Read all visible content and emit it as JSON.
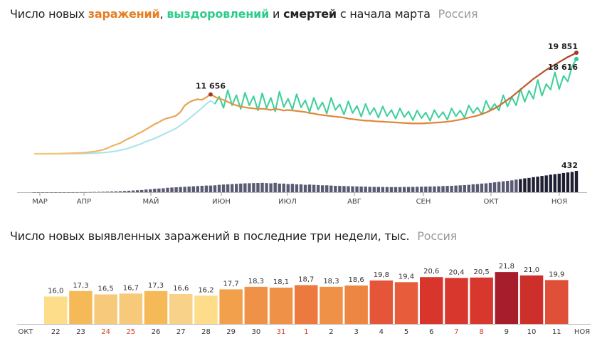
{
  "colors": {
    "cases": "#e2893b",
    "recoveries": "#2ecc8b",
    "recoveries_light": "#a6e3ea",
    "deaths": "#3d3d5c",
    "deaths_last": "#1f1f33",
    "peak_cases": "#a33a2a",
    "weekend": "#d63a2a"
  },
  "header1": {
    "prefix": "Число новых",
    "cases": "заражений",
    "sep": ",",
    "recoveries": "выздоровлений",
    "and": "и",
    "deaths": "смертей",
    "suffix": "с начала марта",
    "region": "Россия"
  },
  "header2": {
    "text": "Число новых выявленных заражений в последние три недели, тыс.",
    "region": "Россия"
  },
  "chart_data": [
    {
      "type": "line",
      "series": [
        {
          "name": "заражений",
          "values": [
            0,
            0,
            0,
            5,
            10,
            20,
            40,
            60,
            90,
            120,
            150,
            200,
            250,
            350,
            450,
            600,
            800,
            1100,
            1500,
            1800,
            2100,
            2600,
            3000,
            3400,
            3900,
            4300,
            4800,
            5300,
            5800,
            6200,
            6700,
            7000,
            7200,
            7500,
            8200,
            9500,
            10100,
            10500,
            10700,
            10600,
            11100,
            11656,
            11200,
            10800,
            10600,
            10200,
            9800,
            9500,
            9300,
            9100,
            9000,
            8900,
            8800,
            8850,
            8750,
            8600,
            8800,
            8700,
            8500,
            8600,
            8500,
            8400,
            8300,
            8200,
            8000,
            7900,
            7700,
            7600,
            7500,
            7400,
            7300,
            7200,
            7100,
            6900,
            6800,
            6700,
            6600,
            6500,
            6500,
            6400,
            6350,
            6300,
            6250,
            6200,
            6150,
            6100,
            6050,
            6000,
            5950,
            5950,
            5950,
            6000,
            6050,
            6100,
            6150,
            6200,
            6300,
            6400,
            6550,
            6700,
            6900,
            7100,
            7300,
            7500,
            7800,
            8100,
            8500,
            8900,
            9400,
            10000,
            10600,
            11200,
            11900,
            12600,
            13300,
            14000,
            14700,
            15300,
            15900,
            16500,
            17000,
            17500,
            18000,
            18500,
            19000,
            19400,
            19851
          ]
        },
        {
          "name": "выздоровлений",
          "values": [
            0,
            0,
            0,
            0,
            0,
            0,
            5,
            10,
            15,
            20,
            30,
            40,
            60,
            90,
            120,
            160,
            220,
            300,
            400,
            520,
            700,
            900,
            1100,
            1400,
            1700,
            2000,
            2400,
            2700,
            3000,
            3400,
            3800,
            4200,
            4600,
            5000,
            5600,
            6200,
            6900,
            7600,
            8300,
            9000,
            9800,
            10400,
            9800,
            11200,
            9000,
            12500,
            9500,
            11500,
            8800,
            12000,
            9500,
            11300,
            8500,
            11900,
            9000,
            11000,
            8300,
            12200,
            9200,
            10800,
            8700,
            11700,
            9100,
            10500,
            8200,
            11000,
            8700,
            10100,
            7900,
            11000,
            8600,
            9700,
            7700,
            10300,
            8000,
            9400,
            7300,
            9800,
            7700,
            9000,
            7100,
            9300,
            7400,
            8600,
            6900,
            8900,
            7200,
            8300,
            6600,
            8500,
            7000,
            8100,
            6500,
            8600,
            7100,
            8200,
            6700,
            8900,
            7400,
            8500,
            7100,
            9500,
            8000,
            9100,
            7700,
            10400,
            8600,
            9800,
            8500,
            11500,
            9300,
            11100,
            9500,
            12700,
            10200,
            12400,
            10800,
            14500,
            11400,
            13700,
            12600,
            16000,
            12700,
            15300,
            14200,
            17200,
            18616
          ]
        },
        {
          "name": "смертей",
          "values": [
            0,
            0,
            0,
            0,
            0,
            0,
            0,
            0,
            0,
            1,
            1,
            2,
            3,
            4,
            6,
            8,
            10,
            12,
            15,
            18,
            20,
            25,
            30,
            35,
            40,
            45,
            55,
            60,
            70,
            75,
            80,
            90,
            95,
            100,
            105,
            110,
            115,
            120,
            125,
            130,
            135,
            135,
            140,
            150,
            155,
            160,
            165,
            170,
            175,
            180,
            182,
            185,
            187,
            190,
            185,
            180,
            190,
            175,
            175,
            165,
            170,
            160,
            160,
            150,
            155,
            150,
            145,
            140,
            140,
            135,
            130,
            128,
            125,
            122,
            120,
            118,
            115,
            113,
            110,
            108,
            107,
            106,
            105,
            104,
            104,
            105,
            106,
            107,
            108,
            110,
            112,
            114,
            116,
            118,
            120,
            125,
            128,
            130,
            135,
            140,
            145,
            150,
            160,
            165,
            175,
            180,
            190,
            200,
            210,
            220,
            230,
            240,
            255,
            265,
            280,
            290,
            305,
            315,
            330,
            340,
            355,
            365,
            375,
            390,
            400,
            410,
            432
          ]
        }
      ],
      "annotations": [
        {
          "label": "11 656",
          "series": "заражений"
        },
        {
          "label": "19 851",
          "series": "заражений"
        },
        {
          "label": "18 616",
          "series": "выздоровлений"
        },
        {
          "label": "432",
          "series": "смертей"
        }
      ],
      "x_ticks": [
        "МАР",
        "АПР",
        "МАЙ",
        "ИЮН",
        "ИЮЛ",
        "АВГ",
        "СЕН",
        "ОКТ",
        "НОЯ"
      ]
    },
    {
      "type": "bar",
      "categories": [
        "22",
        "23",
        "24",
        "25",
        "26",
        "27",
        "28",
        "29",
        "30",
        "31",
        "1",
        "2",
        "3",
        "4",
        "5",
        "6",
        "7",
        "8",
        "9",
        "10",
        "11"
      ],
      "labels": [
        "16,0",
        "17,3",
        "16,5",
        "16,7",
        "17,3",
        "16,6",
        "16,2",
        "17,7",
        "18,3",
        "18,1",
        "18,7",
        "18,3",
        "18,6",
        "19,8",
        "19,4",
        "20,6",
        "20,4",
        "20,5",
        "21,8",
        "21,0",
        "19,9"
      ],
      "values": [
        16.0,
        17.3,
        16.5,
        16.7,
        17.3,
        16.6,
        16.2,
        17.7,
        18.3,
        18.1,
        18.7,
        18.3,
        18.6,
        19.8,
        19.4,
        20.6,
        20.4,
        20.5,
        21.8,
        21.0,
        19.9
      ],
      "weekend": [
        false,
        false,
        true,
        true,
        false,
        false,
        false,
        false,
        false,
        true,
        true,
        false,
        false,
        false,
        false,
        false,
        true,
        true,
        false,
        false,
        false
      ],
      "colors": [
        "#fddc8a",
        "#f6b957",
        "#f7c97a",
        "#f7c97a",
        "#f6b957",
        "#f9d28a",
        "#fddc8a",
        "#f2a04c",
        "#ef9147",
        "#ef9147",
        "#ec7a3f",
        "#ef9147",
        "#ec8642",
        "#e4553a",
        "#e75c3b",
        "#d8362d",
        "#d8372e",
        "#d8372e",
        "#a81d2c",
        "#cd2f2b",
        "#e04f37"
      ],
      "edge_labels": [
        "ОКТ",
        "НОЯ"
      ]
    }
  ]
}
